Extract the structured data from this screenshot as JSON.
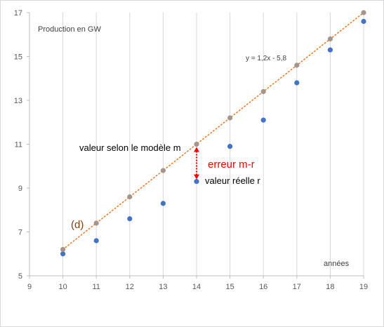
{
  "chart_data": {
    "type": "scatter",
    "title": "",
    "xlabel": "années",
    "ylabel": "Production en GW",
    "xlim": [
      9,
      19
    ],
    "ylim": [
      5,
      17
    ],
    "x_ticks": [
      9,
      10,
      11,
      12,
      13,
      14,
      15,
      16,
      17,
      18,
      19
    ],
    "y_ticks": [
      5,
      7,
      9,
      11,
      13,
      15,
      17
    ],
    "grid": "vertical",
    "series": [
      {
        "role": "observed",
        "color": "#4472c4",
        "points": [
          {
            "x": 10,
            "y": 6.0
          },
          {
            "x": 11,
            "y": 6.6
          },
          {
            "x": 12,
            "y": 7.6
          },
          {
            "x": 13,
            "y": 8.3
          },
          {
            "x": 14,
            "y": 9.3
          },
          {
            "x": 15,
            "y": 10.9
          },
          {
            "x": 16,
            "y": 12.1
          },
          {
            "x": 17,
            "y": 13.8
          },
          {
            "x": 18,
            "y": 15.3
          },
          {
            "x": 19,
            "y": 16.6
          }
        ]
      },
      {
        "role": "model",
        "color": "#a5958a",
        "points": [
          {
            "x": 10,
            "y": 6.2
          },
          {
            "x": 11,
            "y": 7.4
          },
          {
            "x": 12,
            "y": 8.6
          },
          {
            "x": 13,
            "y": 9.8
          },
          {
            "x": 14,
            "y": 11.0
          },
          {
            "x": 15,
            "y": 12.2
          },
          {
            "x": 16,
            "y": 13.4
          },
          {
            "x": 17,
            "y": 14.6
          },
          {
            "x": 18,
            "y": 15.8
          },
          {
            "x": 19,
            "y": 17.0
          }
        ]
      }
    ],
    "trendline": {
      "equation": "y = 1,2x - 5,8",
      "slope": 1.2,
      "intercept": -5.8,
      "style": "dotted",
      "color": "#ed7d31",
      "x_range": [
        10,
        19
      ]
    },
    "annotations": {
      "line_label": "(d)",
      "model_value": "valeur selon le modèle m",
      "real_value": "valeur réelle r",
      "error": "erreur m-r",
      "error_color": "#ff0000",
      "error_at_x": 14
    }
  }
}
